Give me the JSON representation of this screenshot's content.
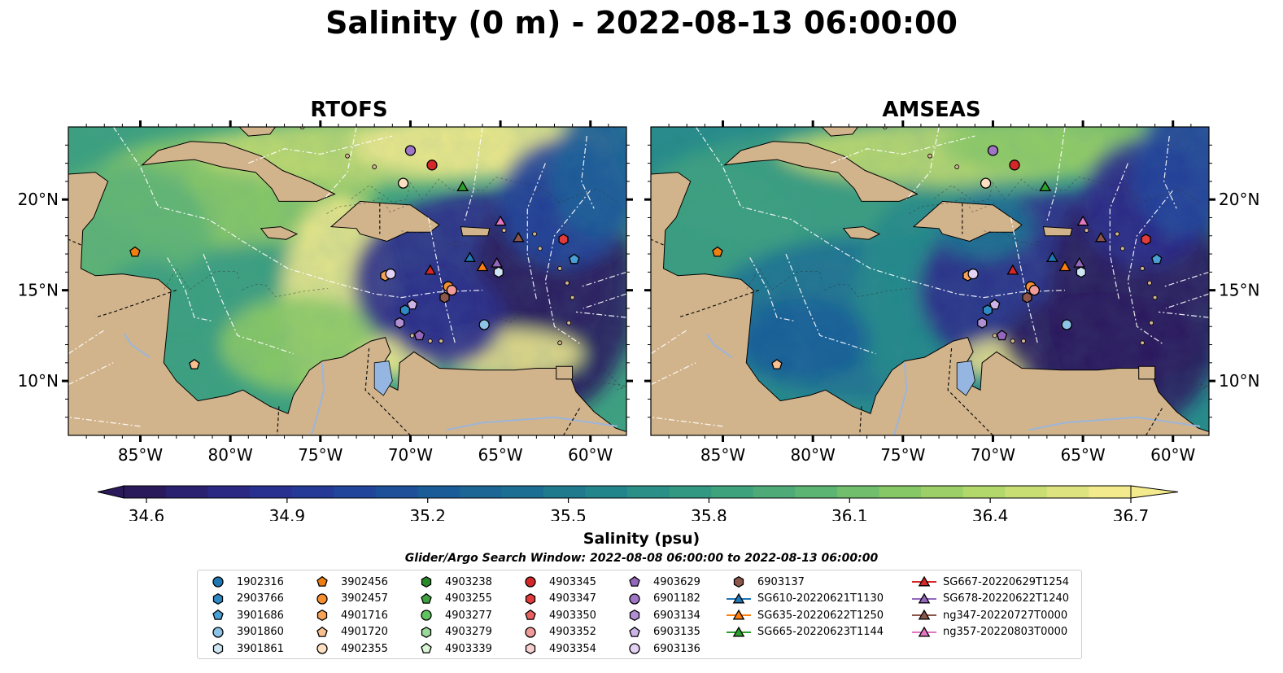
{
  "title": "Salinity (0 m) - 2022-08-13 06:00:00",
  "panels": [
    {
      "title": "RTOFS",
      "variant": "rtofs"
    },
    {
      "title": "AMSEAS",
      "variant": "amseas"
    }
  ],
  "axes": {
    "lon_ticks": [
      "85°W",
      "80°W",
      "75°W",
      "70°W",
      "65°W",
      "60°W"
    ],
    "lat_ticks_left": [
      "20°N",
      "15°N",
      "10°N"
    ],
    "lat_ticks_right": [
      "20°N",
      "15°N",
      "10°N"
    ]
  },
  "colorbar": {
    "label": "Salinity (psu)",
    "min": 34.6,
    "max": 36.7,
    "ticks": [
      "34.6",
      "34.9",
      "35.2",
      "35.5",
      "35.8",
      "36.1",
      "36.4",
      "36.7"
    ],
    "colors": [
      "#2a1a5c",
      "#2b2a8a",
      "#21409a",
      "#1a5b98",
      "#1c7191",
      "#248a89",
      "#3ba07e",
      "#5fb672",
      "#8ecb64",
      "#c2dc6e",
      "#f2ea8c"
    ]
  },
  "colors": {
    "land": "#d2b48c",
    "pacific": "#95b6e0",
    "deep": "#2c1f6a"
  },
  "search_window": "Glider/Argo Search Window: 2022-08-08 06:00:00 to 2022-08-13 06:00:00",
  "legend": [
    {
      "id": "1902316",
      "shape": "circle",
      "color": "#1f77b4"
    },
    {
      "id": "2903766",
      "shape": "hexagon",
      "color": "#2f8ac4"
    },
    {
      "id": "3901686",
      "shape": "pentagon",
      "color": "#4a9fd6"
    },
    {
      "id": "3901860",
      "shape": "circle",
      "color": "#8cc3e6"
    },
    {
      "id": "3901861",
      "shape": "hexagon",
      "color": "#cfe6f5"
    },
    {
      "id": "3902456",
      "shape": "pentagon",
      "color": "#ef7f12"
    },
    {
      "id": "3902457",
      "shape": "circle",
      "color": "#f58f2f"
    },
    {
      "id": "4901716",
      "shape": "hexagon",
      "color": "#f6a45a"
    },
    {
      "id": "4901720",
      "shape": "pentagon",
      "color": "#f8c08f"
    },
    {
      "id": "4902355",
      "shape": "circle",
      "color": "#fde0c2"
    },
    {
      "id": "4903238",
      "shape": "hexagon",
      "color": "#2a8a2a"
    },
    {
      "id": "4903255",
      "shape": "pentagon",
      "color": "#3ea23e"
    },
    {
      "id": "4903277",
      "shape": "circle",
      "color": "#5fc35f"
    },
    {
      "id": "4903279",
      "shape": "hexagon",
      "color": "#9ad99a"
    },
    {
      "id": "4903339",
      "shape": "pentagon",
      "color": "#daf5d5"
    },
    {
      "id": "4903345",
      "shape": "circle",
      "color": "#d62728"
    },
    {
      "id": "4903347",
      "shape": "hexagon",
      "color": "#e23b3b"
    },
    {
      "id": "4903350",
      "shape": "pentagon",
      "color": "#ea6161"
    },
    {
      "id": "4903352",
      "shape": "circle",
      "color": "#f19a9a"
    },
    {
      "id": "4903354",
      "shape": "hexagon",
      "color": "#f8cfcf"
    },
    {
      "id": "4903629",
      "shape": "pentagon",
      "color": "#9467bd"
    },
    {
      "id": "6901182",
      "shape": "circle",
      "color": "#9f76c6"
    },
    {
      "id": "6903134",
      "shape": "hexagon",
      "color": "#b08fd3"
    },
    {
      "id": "6903135",
      "shape": "pentagon",
      "color": "#cdb4e6"
    },
    {
      "id": "6903136",
      "shape": "circle",
      "color": "#e4d2f5"
    },
    {
      "id": "6903137",
      "shape": "hexagon",
      "color": "#8c564b"
    },
    {
      "id": "SG610-20220621T1130",
      "shape": "triangle",
      "color": "#1f77b4",
      "line": true
    },
    {
      "id": "SG635-20220622T1250",
      "shape": "triangle",
      "color": "#ff7f0e",
      "line": true
    },
    {
      "id": "SG665-20220623T1144",
      "shape": "triangle",
      "color": "#2ca02c",
      "line": true
    },
    {
      "id": "SG667-20220629T1254",
      "shape": "triangle",
      "color": "#d62728",
      "line": true
    },
    {
      "id": "SG678-20220622T1240",
      "shape": "triangle",
      "color": "#9467bd",
      "line": true
    },
    {
      "id": "ng347-20220727T0000",
      "shape": "triangle",
      "color": "#8c564b",
      "line": true
    },
    {
      "id": "ng357-20220803T0000",
      "shape": "triangle",
      "color": "#e377c2",
      "line": true
    }
  ],
  "markers": [
    {
      "id": "6901182",
      "shape": "circle",
      "color": "#9f76c6",
      "lon": -70.0,
      "lat": 22.7
    },
    {
      "id": "4903345",
      "shape": "circle",
      "color": "#d62728",
      "lon": -68.8,
      "lat": 21.9
    },
    {
      "id": "4902355",
      "shape": "circle",
      "color": "#fde0c2",
      "lon": -70.4,
      "lat": 20.9
    },
    {
      "id": "SG665-20220623T1144",
      "shape": "triangle",
      "color": "#2ca02c",
      "lon": -67.1,
      "lat": 20.7
    },
    {
      "id": "ng357-20220803T0000",
      "shape": "triangle",
      "color": "#e377c2",
      "lon": -65.0,
      "lat": 18.8
    },
    {
      "id": "4903347",
      "shape": "hexagon",
      "color": "#e23b3b",
      "lon": -61.5,
      "lat": 17.8
    },
    {
      "id": "ng347-20220727T0000",
      "shape": "triangle",
      "color": "#8c564b",
      "lon": -64.0,
      "lat": 17.9
    },
    {
      "id": "3902456",
      "shape": "pentagon",
      "color": "#ef7f12",
      "lon": -85.3,
      "lat": 17.1
    },
    {
      "id": "SG610-20220621T1130",
      "shape": "triangle",
      "color": "#1f77b4",
      "lon": -66.7,
      "lat": 16.8
    },
    {
      "id": "SG678-20220622T1240",
      "shape": "triangle",
      "color": "#9467bd",
      "lon": -65.2,
      "lat": 16.5
    },
    {
      "id": "3901686",
      "shape": "pentagon",
      "color": "#4a9fd6",
      "lon": -60.9,
      "lat": 16.7
    },
    {
      "id": "SG635-20220622T1250",
      "shape": "triangle",
      "color": "#ff7f0e",
      "lon": -66.0,
      "lat": 16.3
    },
    {
      "id": "SG667-20220629T1254",
      "shape": "triangle",
      "color": "#d62728",
      "lon": -68.9,
      "lat": 16.1
    },
    {
      "id": "3901861",
      "shape": "hexagon",
      "color": "#cfe6f5",
      "lon": -65.1,
      "lat": 16.0
    },
    {
      "id": "4901716",
      "shape": "hexagon",
      "color": "#f6a45a",
      "lon": -71.4,
      "lat": 15.8
    },
    {
      "id": "6903136",
      "shape": "circle",
      "color": "#e4d2f5",
      "lon": -71.1,
      "lat": 15.9
    },
    {
      "id": "3902457",
      "shape": "circle",
      "color": "#f58f2f",
      "lon": -67.9,
      "lat": 15.2
    },
    {
      "id": "4903352",
      "shape": "circle",
      "color": "#f19a9a",
      "lon": -67.7,
      "lat": 15.0
    },
    {
      "id": "6903137",
      "shape": "hexagon",
      "color": "#8c564b",
      "lon": -68.1,
      "lat": 14.6
    },
    {
      "id": "6903135",
      "shape": "pentagon",
      "color": "#cdb4e6",
      "lon": -69.9,
      "lat": 14.2
    },
    {
      "id": "2903766",
      "shape": "hexagon",
      "color": "#2f8ac4",
      "lon": -70.3,
      "lat": 13.9
    },
    {
      "id": "6903134",
      "shape": "hexagon",
      "color": "#b08fd3",
      "lon": -70.6,
      "lat": 13.2
    },
    {
      "id": "4903629",
      "shape": "pentagon",
      "color": "#9467bd",
      "lon": -69.5,
      "lat": 12.5
    },
    {
      "id": "3901860",
      "shape": "circle",
      "color": "#8cc3e6",
      "lon": -65.9,
      "lat": 13.1
    },
    {
      "id": "4901720",
      "shape": "pentagon",
      "color": "#f8c08f",
      "lon": -82.0,
      "lat": 10.9
    }
  ]
}
